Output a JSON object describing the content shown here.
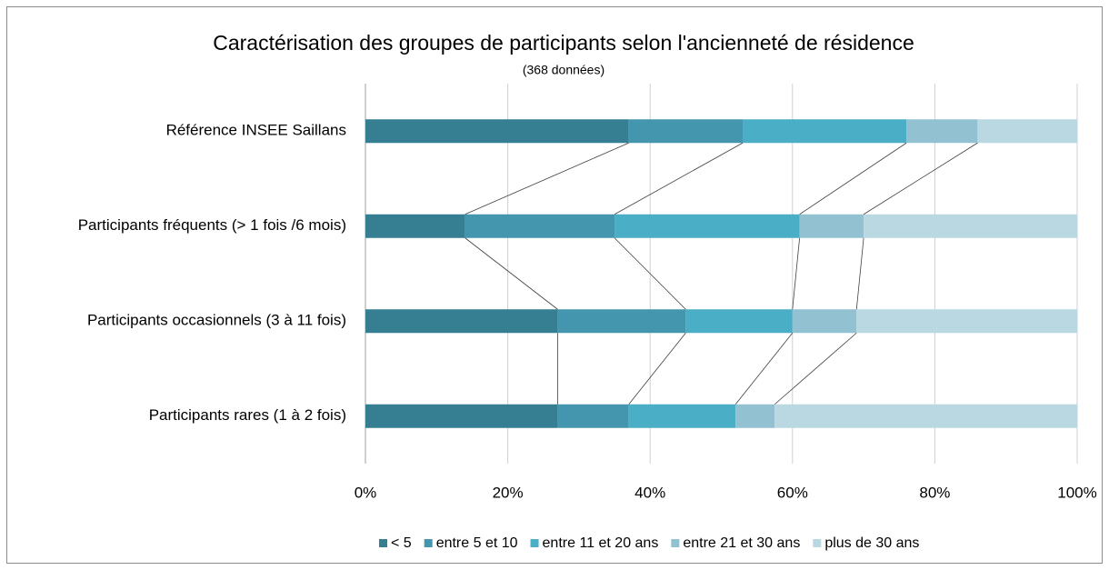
{
  "chart_data": {
    "type": "stacked_barh",
    "title": "Caractérisation des groupes de participants selon l'ancienneté de résidence",
    "subtitle": "(368 données)",
    "categories": [
      "Référence INSEE Saillans",
      "Participants fréquents (> 1 fois /6 mois)",
      "Participants occasionnels (3 à 11 fois)",
      "Participants rares (1 à 2 fois)"
    ],
    "series": [
      {
        "name": "< 5",
        "color": "#367e91",
        "values": [
          37,
          14,
          27,
          27
        ]
      },
      {
        "name": "entre 5 et 10",
        "color": "#4396ae",
        "values": [
          16,
          21,
          18,
          10
        ]
      },
      {
        "name": "entre 11 et 20 ans",
        "color": "#4aaec6",
        "values": [
          23,
          26,
          15,
          15
        ]
      },
      {
        "name": "entre 21 et 30 ans",
        "color": "#92c1d1",
        "values": [
          10,
          9,
          9,
          5.5
        ]
      },
      {
        "name": "plus de 30 ans",
        "color": "#bad8e2",
        "values": [
          14,
          30,
          31,
          42.5
        ]
      }
    ],
    "xlim": [
      0,
      100
    ],
    "xticks": [
      {
        "value": 0,
        "label": "0%"
      },
      {
        "value": 20,
        "label": "20%"
      },
      {
        "value": 40,
        "label": "40%"
      },
      {
        "value": 60,
        "label": "60%"
      },
      {
        "value": 80,
        "label": "80%"
      },
      {
        "value": 100,
        "label": "100%"
      }
    ],
    "grid": true,
    "legend": "bottom"
  }
}
